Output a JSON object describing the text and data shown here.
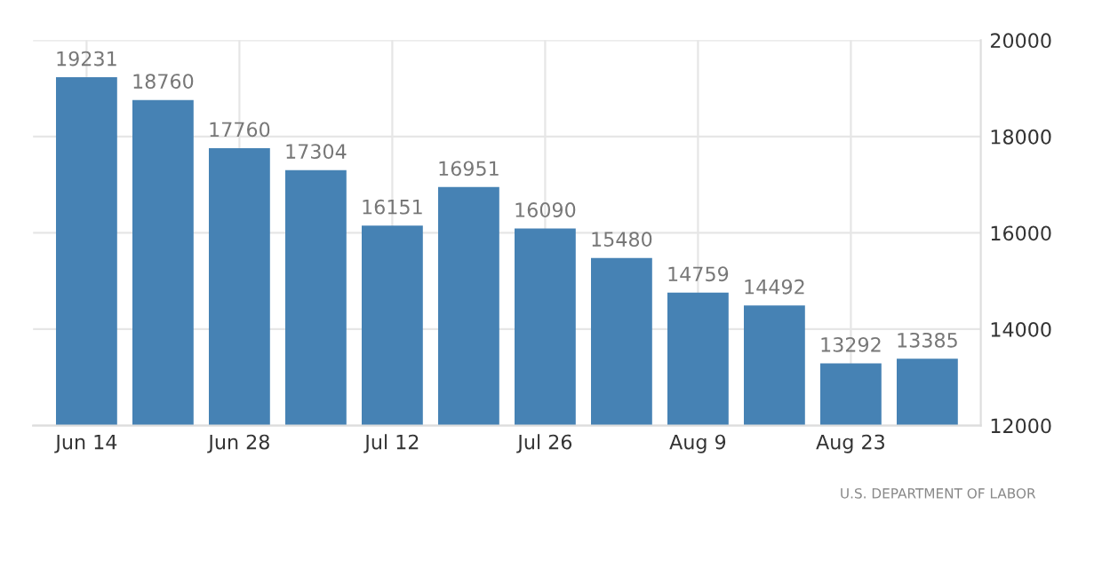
{
  "chart_data": {
    "type": "bar",
    "categories": [
      "Jun 14",
      null,
      "Jun 28",
      null,
      "Jul 12",
      null,
      "Jul 26",
      null,
      "Aug 9",
      null,
      "Aug 23",
      null
    ],
    "values": [
      19231,
      18760,
      17760,
      17304,
      16151,
      16951,
      16090,
      15480,
      14759,
      14492,
      13292,
      13385
    ],
    "color": "#4682b4",
    "ylim": [
      12000,
      20000
    ],
    "yticks": [
      12000,
      14000,
      16000,
      18000,
      20000
    ],
    "grid": true,
    "data_labels": true,
    "annotations": [
      "U.S. DEPARTMENT OF LABOR"
    ]
  }
}
